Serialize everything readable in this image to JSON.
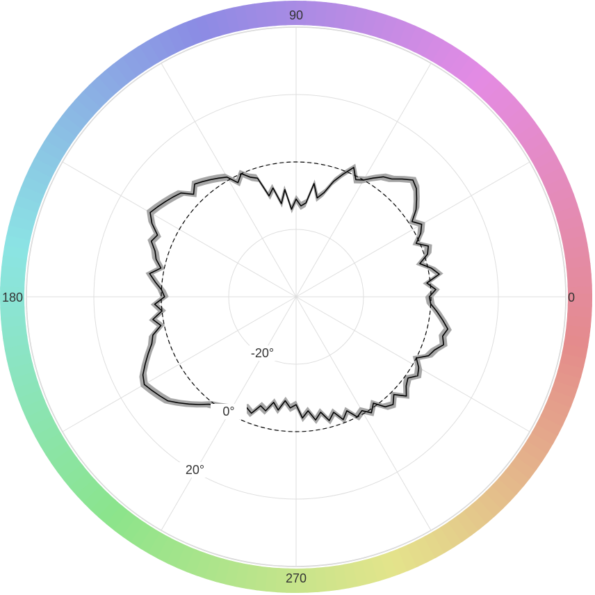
{
  "chart_data": {
    "type": "line",
    "coordinate_system": "polar",
    "angle_unit": "degrees",
    "angle_direction": "counterclockwise from east",
    "angle_ticks": [
      "0",
      "90",
      "180",
      "270"
    ],
    "radial_tick_labels": [
      "-20°",
      "0°",
      "20°"
    ],
    "radial_ticks": [
      -20,
      0,
      20
    ],
    "radial_range": [
      -40,
      40
    ],
    "reference_circle_value": 0,
    "grid": true,
    "outer_ring": "hue color wheel (0–360°)",
    "series": [
      {
        "angle": [
          0,
          3,
          6,
          9,
          12,
          15,
          18,
          21,
          24,
          27,
          30,
          33,
          36,
          39,
          42,
          45,
          48,
          51,
          54,
          57,
          60,
          63,
          66,
          69,
          72,
          75,
          78,
          81,
          84,
          87,
          90,
          93,
          96,
          99,
          102,
          105,
          108,
          111,
          114,
          117,
          120,
          123,
          126,
          129,
          132,
          135,
          138,
          141,
          144,
          147,
          150,
          153,
          156,
          159,
          162,
          165,
          168,
          171,
          174,
          177,
          180,
          183,
          186,
          189,
          192,
          195,
          198,
          201,
          204,
          207,
          210,
          213,
          216,
          219,
          222,
          225,
          228,
          231,
          234,
          237,
          240,
          243,
          246,
          249,
          252,
          255,
          258,
          261,
          264,
          267,
          270,
          273,
          276,
          279,
          282,
          285,
          288,
          291,
          294,
          297,
          300,
          303,
          306,
          309,
          312,
          315,
          318,
          321,
          324,
          327,
          330,
          333,
          336,
          339,
          342,
          345,
          348,
          351,
          354,
          357
        ],
        "value": [
          -0.5,
          1.5,
          -1,
          3,
          1,
          -2,
          1,
          2,
          -1,
          1.5,
          3,
          1,
          4,
          6,
          8,
          9,
          7,
          5,
          4,
          2,
          0,
          -1,
          2,
          -1,
          -4,
          -8,
          -10,
          -6,
          -12,
          -13,
          -11,
          -14,
          -8,
          -12,
          -7,
          -9,
          -3,
          -2,
          0,
          -2,
          1,
          2,
          3,
          4,
          5,
          3,
          6,
          7,
          8,
          9,
          10,
          8,
          5,
          6,
          4,
          3,
          1,
          4,
          2,
          0,
          -1,
          2,
          0,
          3,
          1,
          4,
          5,
          7,
          9,
          11,
          12,
          11,
          10,
          9,
          7,
          5,
          3,
          1,
          0,
          -1,
          -2,
          -3,
          -4,
          -3,
          -6,
          -5,
          -8,
          -6,
          -9,
          -7,
          -8,
          -4,
          -6,
          -3,
          -5,
          -2,
          -4,
          -1,
          -3,
          0,
          -1,
          1,
          -1,
          2,
          3,
          1,
          4,
          2,
          1,
          3,
          2,
          0,
          3,
          4,
          6,
          5,
          6,
          4,
          2,
          0
        ],
        "color": "#000000",
        "band_color": "#a6a6a6",
        "band_half_width": 1.2
      }
    ]
  }
}
